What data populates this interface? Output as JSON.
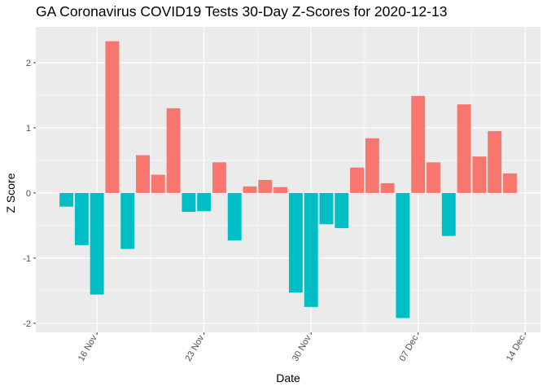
{
  "chart_data": {
    "type": "bar",
    "title": "GA Coronavirus COVID19 Tests 30-Day Z-Scores for 2020-12-13",
    "xlabel": "Date",
    "ylabel": "Z Score",
    "x": [
      "2020-11-14",
      "2020-11-15",
      "2020-11-16",
      "2020-11-17",
      "2020-11-18",
      "2020-11-19",
      "2020-11-20",
      "2020-11-21",
      "2020-11-22",
      "2020-11-23",
      "2020-11-24",
      "2020-11-25",
      "2020-11-26",
      "2020-11-27",
      "2020-11-28",
      "2020-11-29",
      "2020-11-30",
      "2020-12-01",
      "2020-12-02",
      "2020-12-03",
      "2020-12-04",
      "2020-12-05",
      "2020-12-06",
      "2020-12-07",
      "2020-12-08",
      "2020-12-09",
      "2020-12-10",
      "2020-12-11",
      "2020-12-12",
      "2020-12-13"
    ],
    "values": [
      -0.21,
      -0.8,
      -1.56,
      2.33,
      -0.86,
      0.58,
      0.28,
      1.3,
      -0.29,
      -0.28,
      0.47,
      -0.73,
      0.1,
      0.2,
      0.09,
      -1.53,
      -1.75,
      -0.48,
      -0.54,
      0.39,
      0.84,
      0.15,
      -1.92,
      1.49,
      0.47,
      -0.66,
      1.36,
      0.56,
      0.95,
      0.3
    ],
    "xticks": [
      "16 Nov",
      "23 Nov",
      "30 Nov",
      "07 Dec",
      "14 Dec"
    ],
    "xtick_dates": [
      "2020-11-16",
      "2020-11-23",
      "2020-11-30",
      "2020-12-07",
      "2020-12-14"
    ],
    "yticks": [
      -2,
      -1,
      0,
      1,
      2
    ],
    "xlim": [
      "2020-11-12",
      "2020-12-15"
    ],
    "ylim": [
      -2.14,
      2.55
    ],
    "grid": true,
    "colors": {
      "positive": "#F8766D",
      "negative": "#00BFC4",
      "panel": "#EBEBEB",
      "grid": "#FFFFFF"
    }
  }
}
